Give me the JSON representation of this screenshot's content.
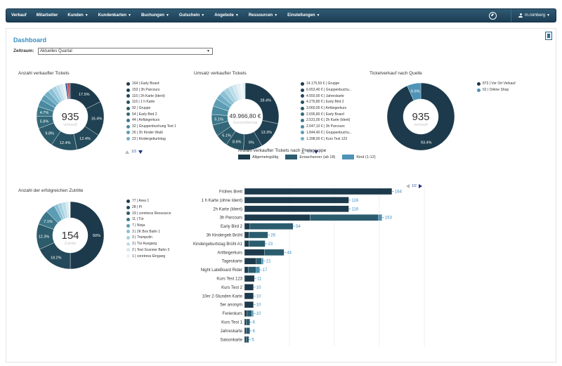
{
  "nav": {
    "items": [
      {
        "label": "Verkauf",
        "caret": false
      },
      {
        "label": "Mitarbeiter",
        "caret": false
      },
      {
        "label": "Kunden",
        "caret": true
      },
      {
        "label": "Kundenkarten",
        "caret": true
      },
      {
        "label": "Buchungen",
        "caret": true
      },
      {
        "label": "Gutschein",
        "caret": true
      },
      {
        "label": "Angebote",
        "caret": true
      },
      {
        "label": "Ressourcen",
        "caret": true
      },
      {
        "label": "Einstellungen",
        "caret": true
      }
    ],
    "user": "m.romberg"
  },
  "page": {
    "title": "Dashboard",
    "zeitraum_label": "Zeitraum:",
    "zeitraum_value": "Aktuelles Quartal"
  },
  "colors": {
    "dark": "#1c3a4b",
    "mid": "#2a5c6e",
    "light": "#4f93b6",
    "accent": "#3a8fc2"
  },
  "donuts": [
    {
      "id": "tickets",
      "title": "Anzahl verkaufter Tickets",
      "center_value": "935",
      "center_label": "verkauft",
      "legend": [
        "164 | Early Board",
        "153 | 3h Parcours",
        "116 | 2h Karte (Ident)",
        "116 | 1 h Karte",
        "92 | Gruppe",
        "54 | Early Bird 2",
        "44 | Anfängerkurs",
        "32 | Gruppenbuchung Test 1",
        "26 | 2h Kinder Wald",
        "23 | Kindergeburtstag"
      ],
      "pager": "1/3",
      "slices": [
        {
          "value": 17.5,
          "label": "17.5%",
          "color": "#1c3a4b"
        },
        {
          "value": 16.4,
          "label": "16.4%",
          "color": "#1f4152"
        },
        {
          "value": 12.4,
          "label": "12.4%",
          "color": "#23495a"
        },
        {
          "value": 12.4,
          "label": "12.4%",
          "color": "#275262"
        },
        {
          "value": 9.8,
          "label": "9.8%",
          "color": "#2c5b6b"
        },
        {
          "value": 5.8,
          "label": "5.8%",
          "color": "#336878"
        },
        {
          "value": 4.7,
          "label": "4.7%",
          "color": "#3c7789"
        },
        {
          "value": 3.4,
          "label": "",
          "color": "#4a8aa0"
        },
        {
          "value": 2.8,
          "label": "",
          "color": "#5c9db5"
        },
        {
          "value": 2.5,
          "label": "",
          "color": "#72afc6"
        },
        {
          "value": 2.2,
          "label": "",
          "color": "#8bc0d4"
        },
        {
          "value": 2.0,
          "label": "",
          "color": "#a5d0e0"
        },
        {
          "value": 1.8,
          "label": "",
          "color": "#bcdde9"
        },
        {
          "value": 1.5,
          "label": "",
          "color": "#d3e8f0"
        },
        {
          "value": 1.3,
          "label": "",
          "color": "#e5f1f5"
        },
        {
          "value": 1.0,
          "label": "",
          "color": "#3e5d9a"
        },
        {
          "value": 0.8,
          "label": "",
          "color": "#c43a3a"
        },
        {
          "value": 0.6,
          "label": "",
          "color": "#2c3e70"
        }
      ]
    },
    {
      "id": "umsatz",
      "title": "Umsatz verkaufter Tickets",
      "center_value": "49.966,80 €",
      "center_label": "Gesamtbetrag",
      "legend": [
        "14.175,50 € | Gruppe",
        "6.653,40 € | Gruppenbuchu...",
        "4.550,00 € | Jahreskarte",
        "4.276,80 € | Early Bird 2",
        "3.060,00 € | Anfängerkurs",
        "2.695,80 € | Early Board",
        "2.531,00 € | 2h Karte (Ident)",
        "2.047,10 € | 3h Parcours",
        "1.844,40 € | Gruppenbuchu...",
        "1.398,00 € | Kurs Test 123"
      ],
      "pager": "1/3",
      "slices": [
        {
          "value": 28.4,
          "label": "28.4%",
          "color": "#1c3a4b"
        },
        {
          "value": 13.3,
          "label": "13.3%",
          "color": "#1f4152"
        },
        {
          "value": 9.1,
          "label": "9%",
          "color": "#23495a"
        },
        {
          "value": 8.6,
          "label": "8.6%",
          "color": "#275262"
        },
        {
          "value": 6.1,
          "label": "6.1%",
          "color": "#2c5b6b"
        },
        {
          "value": 5.4,
          "label": "",
          "color": "#336878"
        },
        {
          "value": 5.1,
          "label": "5.1%",
          "color": "#3c7789"
        },
        {
          "value": 4.1,
          "label": "",
          "color": "#4a8aa0"
        },
        {
          "value": 3.7,
          "label": "",
          "color": "#5c9db5"
        },
        {
          "value": 2.8,
          "label": "",
          "color": "#72afc6"
        },
        {
          "value": 2.6,
          "label": "",
          "color": "#8bc0d4"
        },
        {
          "value": 2.4,
          "label": "",
          "color": "#a5d0e0"
        },
        {
          "value": 2.2,
          "label": "",
          "color": "#bcdde9"
        },
        {
          "value": 2.0,
          "label": "",
          "color": "#d3e8f0"
        },
        {
          "value": 1.8,
          "label": "",
          "color": "#e5f1f5"
        },
        {
          "value": 1.4,
          "label": "",
          "color": "#f0f7fa"
        },
        {
          "value": 1.0,
          "label": "",
          "color": "#dbe9ef"
        }
      ]
    },
    {
      "id": "quelle",
      "title": "Ticketverkauf nach Quelle",
      "center_value": "935",
      "center_label": "verkauft",
      "legend": [
        "873 | Vor Ort Verkauf",
        "62 | Online Shop"
      ],
      "pager": "",
      "slices": [
        {
          "value": 93.4,
          "label": "93.4%",
          "color": "#1c3a4b"
        },
        {
          "value": 6.6,
          "label": "6.6%",
          "color": "#4f93b6"
        }
      ]
    },
    {
      "id": "zutritte",
      "title": "Anzahl der erfolgreichen Zutritte",
      "center_value": "154",
      "center_label": "Zutritte",
      "legend": [
        "77 | Area 1",
        "28 | Pi",
        "19 | coretress Ressource",
        "11 | Tür",
        "7 | Ninja",
        "3 | 2K Box Bahn 1",
        "3 | Trampolin",
        "3 | Tür Ausgang",
        "2 | Test Scanner Bahn 3",
        "1 | coretress Eingang"
      ],
      "pager": "",
      "slices": [
        {
          "value": 50,
          "label": "50%",
          "color": "#1c3a4b"
        },
        {
          "value": 18.2,
          "label": "18.2%",
          "color": "#23495a"
        },
        {
          "value": 12.3,
          "label": "12.3%",
          "color": "#2c5b6b"
        },
        {
          "value": 7.1,
          "label": "7.1%",
          "color": "#3c7789"
        },
        {
          "value": 4.5,
          "label": "",
          "color": "#5c9db5"
        },
        {
          "value": 1.9,
          "label": "",
          "color": "#8bc0d4"
        },
        {
          "value": 1.9,
          "label": "",
          "color": "#a5d0e0"
        },
        {
          "value": 1.9,
          "label": "",
          "color": "#bcdde9"
        },
        {
          "value": 1.3,
          "label": "",
          "color": "#d3e8f0"
        },
        {
          "value": 0.6,
          "label": "",
          "color": "#e5f1f5"
        },
        {
          "value": 0.3,
          "label": "",
          "color": "#f0f7fa"
        }
      ]
    }
  ],
  "chart_data": {
    "type": "bar",
    "title": "Anzahl verkaufter Tickets nach Preisgruppe",
    "pager": "1/2",
    "categories": [
      "Frühes Brett",
      "1 h Karte (ohne Ident)",
      "2h Karte (Ident)",
      "3h Parcours",
      "Early Bird 2",
      "3h Kindergeb Brühl",
      "Kindergeburtstag Brühl A1",
      "Anfängerkurs",
      "Tageskarte",
      "Night LateBoard Rider",
      "Kurs Test 123",
      "Kurs Test 2",
      "10er 2-Stunden Karte",
      "5er anonym",
      "Ferienkurs",
      "Kurs Test 1",
      "Jahreskarte",
      "Saisonkarte"
    ],
    "series": [
      {
        "name": "Allgemeingültig",
        "color": "#1c3a4b",
        "values": [
          164,
          116,
          116,
          73,
          6,
          5,
          5,
          22,
          13,
          4,
          11,
          10,
          10,
          10,
          3,
          2,
          2,
          2
        ]
      },
      {
        "name": "Erwachsener (ab 18)",
        "color": "#2a5c6e",
        "values": [
          0,
          0,
          0,
          76,
          48,
          21,
          18,
          22,
          6,
          9,
          0,
          0,
          0,
          0,
          5,
          4,
          4,
          3
        ]
      },
      {
        "name": "Kind (1-12)",
        "color": "#4f93b6",
        "values": [
          0,
          0,
          0,
          4,
          0,
          0,
          0,
          0,
          2,
          4,
          0,
          0,
          0,
          0,
          2,
          0,
          0,
          0
        ]
      }
    ],
    "totals": [
      164,
      116,
      116,
      153,
      54,
      26,
      23,
      44,
      21,
      17,
      11,
      10,
      10,
      10,
      10,
      6,
      6,
      5
    ],
    "xticks": [
      0,
      50,
      100,
      150,
      200
    ],
    "xlim": [
      0,
      200
    ]
  }
}
